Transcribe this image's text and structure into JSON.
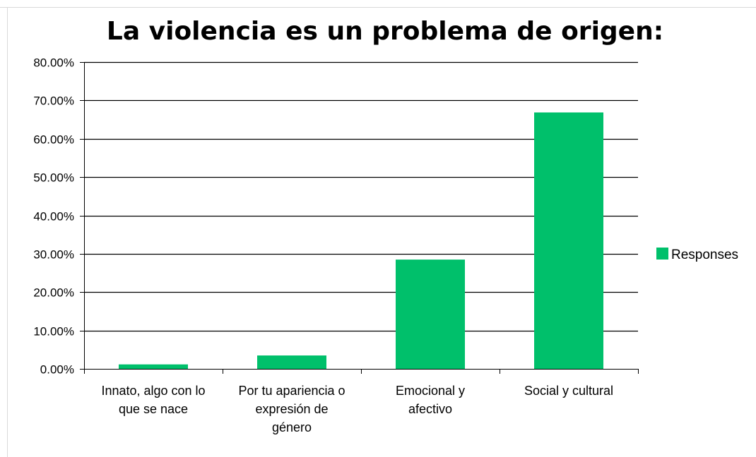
{
  "chart_data": {
    "type": "bar",
    "title": "La violencia es un problema de origen:",
    "xlabel": "",
    "ylabel": "",
    "categories": [
      [
        "Innato, algo con lo",
        "que se nace"
      ],
      [
        "Por tu apariencia o",
        "expresión de",
        "género"
      ],
      [
        "Emocional y",
        "afectivo"
      ],
      [
        "Social y cultural"
      ]
    ],
    "series": [
      {
        "name": "Responses",
        "values": [
          0.0116,
          0.0349,
          0.2849,
          0.6686
        ],
        "color": "#00c06b"
      }
    ],
    "ylim": [
      0,
      0.8
    ],
    "y_ticks": [
      "0.00%",
      "10.00%",
      "20.00%",
      "30.00%",
      "40.00%",
      "50.00%",
      "60.00%",
      "70.00%",
      "80.00%"
    ],
    "grid": true,
    "legend_position": "right"
  }
}
